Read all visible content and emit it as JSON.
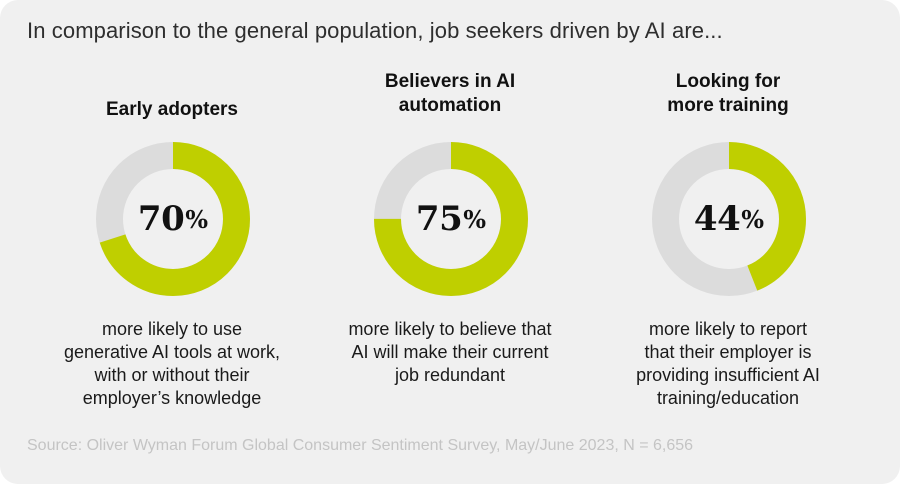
{
  "headline": "In comparison to the general population, job seekers driven by AI are...",
  "source": "Source: Oliver Wyman Forum Global Consumer Sentiment Survey, May/June 2023, N = 6,656",
  "colors": {
    "accent": "#bfcf00",
    "track": "#dcdcdc",
    "background": "#f0f0f0"
  },
  "chart_data": [
    {
      "type": "pie",
      "title": "Early adopters",
      "value": 70,
      "value_label": "70",
      "unit": "%",
      "description": "more likely to use\ngenerative AI tools at work,\nwith or without their\nemployer’s knowledge"
    },
    {
      "type": "pie",
      "title": "Believers in AI\nautomation",
      "value": 75,
      "value_label": "75",
      "unit": "%",
      "description": "more likely to believe that\nAI will make their current\njob redundant"
    },
    {
      "type": "pie",
      "title": "Looking for\nmore training",
      "value": 44,
      "value_label": "44",
      "unit": "%",
      "description": "more likely to report\nthat their employer is\nproviding insufficient AI\ntraining/education"
    }
  ]
}
